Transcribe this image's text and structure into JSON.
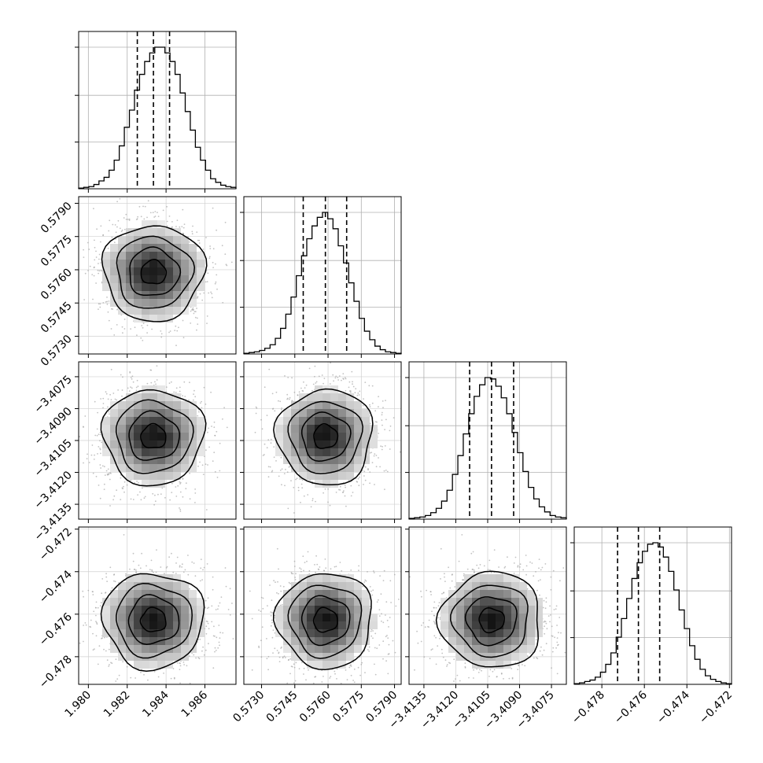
{
  "chart_data": {
    "type": "corner",
    "parameters": [
      {
        "hist": [
          1,
          2,
          3,
          6,
          11,
          16,
          26,
          40,
          60,
          86,
          110,
          138,
          160,
          178,
          190,
          198,
          198,
          190,
          178,
          160,
          134,
          108,
          82,
          58,
          40,
          26,
          14,
          9,
          5,
          3,
          2
        ],
        "quantiles": [
          1.98252,
          1.98335,
          1.98418
        ],
        "ticks": [
          "1.980",
          "1.982",
          "1.984",
          "1.986"
        ],
        "tick_values": [
          1.98,
          1.982,
          1.984,
          1.986
        ],
        "range": [
          1.9795,
          1.9876
        ]
      },
      {
        "hist": [
          1,
          2,
          3,
          5,
          8,
          13,
          22,
          36,
          56,
          80,
          110,
          138,
          162,
          180,
          192,
          199,
          190,
          176,
          152,
          128,
          100,
          74,
          50,
          32,
          20,
          11,
          6,
          3,
          2,
          1
        ],
        "quantiles": [
          0.57488,
          0.57588,
          0.57684
        ],
        "ticks": [
          "0.5730",
          "0.5745",
          "0.5760",
          "0.5775",
          "0.5790"
        ],
        "tick_values": [
          0.573,
          0.5745,
          0.576,
          0.5775,
          0.579
        ],
        "range": [
          0.5722,
          0.5793
        ]
      },
      {
        "hist": [
          1,
          2,
          3,
          5,
          9,
          15,
          25,
          40,
          62,
          88,
          118,
          146,
          170,
          186,
          196,
          194,
          184,
          168,
          146,
          120,
          92,
          66,
          44,
          28,
          17,
          10,
          5,
          3,
          2
        ],
        "quantiles": [
          -3.41135,
          -3.41032,
          -3.40928
        ],
        "ticks": [
          "−3.4135",
          "−3.4120",
          "−3.4105",
          "−3.4090",
          "−3.4075"
        ],
        "tick_values": [
          -3.4135,
          -3.412,
          -3.4105,
          -3.409,
          -3.4075
        ],
        "range": [
          -3.4142,
          -3.4068
        ]
      },
      {
        "hist": [
          1,
          2,
          4,
          6,
          10,
          17,
          28,
          44,
          66,
          92,
          120,
          148,
          170,
          186,
          196,
          198,
          192,
          178,
          158,
          132,
          104,
          78,
          54,
          35,
          21,
          12,
          7,
          4,
          2,
          1
        ],
        "quantiles": [
          -0.47726,
          -0.47628,
          -0.47528
        ],
        "ticks": [
          "−0.478",
          "−0.476",
          "−0.474",
          "−0.472"
        ],
        "tick_values": [
          -0.478,
          -0.476,
          -0.474,
          -0.472
        ],
        "range": [
          -0.4793,
          -0.4719
        ]
      }
    ],
    "joint_sigma_fraction": 0.16,
    "contour_levels_sigma": [
      0.5,
      1.0,
      1.5,
      2.0
    ],
    "grid": true
  }
}
